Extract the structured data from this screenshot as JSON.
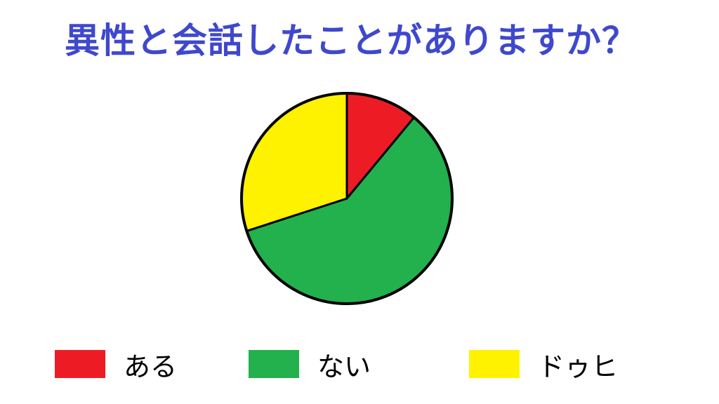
{
  "chart_data": {
    "type": "pie",
    "title": "異性と会話したことがありますか？",
    "categories": [
      "ある",
      "ない",
      "ドゥヒ"
    ],
    "values": [
      11,
      59,
      30
    ],
    "colors": [
      "#ed1c24",
      "#22b14c",
      "#fff200"
    ],
    "start_angle": "12 o'clock",
    "direction": "clockwise",
    "legend": "bottom"
  }
}
